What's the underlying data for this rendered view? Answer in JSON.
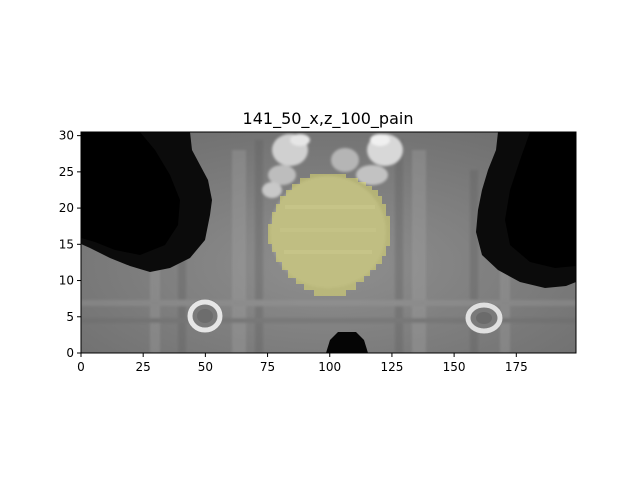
{
  "figure": {
    "title": "141_50_x,z_100_pain"
  },
  "axes": {
    "xlim": [
      0,
      199
    ],
    "ylim": [
      0,
      30.5
    ],
    "xticks": [
      {
        "value": 0,
        "label": "0"
      },
      {
        "value": 25,
        "label": "25"
      },
      {
        "value": 50,
        "label": "50"
      },
      {
        "value": 75,
        "label": "75"
      },
      {
        "value": 100,
        "label": "100"
      },
      {
        "value": 125,
        "label": "125"
      },
      {
        "value": 150,
        "label": "150"
      },
      {
        "value": 175,
        "label": "175"
      }
    ],
    "yticks": [
      {
        "value": 0,
        "label": "0"
      },
      {
        "value": 5,
        "label": "5"
      },
      {
        "value": 10,
        "label": "10"
      },
      {
        "value": 15,
        "label": "15"
      },
      {
        "value": 20,
        "label": "20"
      },
      {
        "value": 25,
        "label": "25"
      },
      {
        "value": 30,
        "label": "30"
      }
    ]
  },
  "image": {
    "kind": "grayscale CT coronal slice",
    "overlay": {
      "color": "#e0dc70",
      "opacity": 0.55,
      "center": [
        100,
        16
      ],
      "radius_x": 24,
      "radius_y": 8.5
    }
  }
}
